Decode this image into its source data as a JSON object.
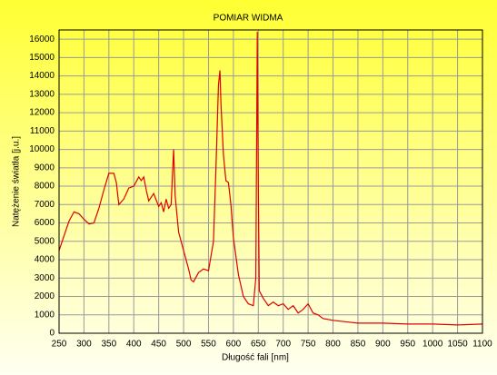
{
  "chart_data": {
    "type": "line",
    "title": "POMIAR WIDMA",
    "x_label": "Długość fali [nm]",
    "y_label": "Natężenie światła [j.u.]",
    "x": [
      250,
      260,
      270,
      280,
      290,
      300,
      310,
      320,
      330,
      340,
      350,
      360,
      365,
      370,
      380,
      390,
      400,
      410,
      415,
      420,
      425,
      430,
      440,
      450,
      455,
      460,
      465,
      470,
      475,
      480,
      483,
      490,
      500,
      510,
      515,
      520,
      530,
      540,
      550,
      560,
      565,
      570,
      573,
      575,
      580,
      585,
      590,
      595,
      600,
      610,
      620,
      630,
      640,
      645,
      648,
      650,
      652,
      660,
      670,
      680,
      690,
      700,
      710,
      720,
      730,
      740,
      750,
      760,
      770,
      780,
      800,
      850,
      900,
      950,
      1000,
      1050,
      1100
    ],
    "values": [
      4500,
      5300,
      6100,
      6600,
      6500,
      6200,
      5950,
      6000,
      6800,
      7800,
      8700,
      8700,
      8200,
      7000,
      7300,
      7900,
      8000,
      8500,
      8300,
      8500,
      7800,
      7200,
      7600,
      6900,
      7100,
      6600,
      7300,
      6800,
      7000,
      10000,
      7500,
      5500,
      4500,
      3500,
      2900,
      2800,
      3300,
      3500,
      3400,
      5000,
      9000,
      13500,
      14300,
      12500,
      9700,
      8300,
      8200,
      7000,
      5200,
      3200,
      2000,
      1600,
      1500,
      3000,
      16400,
      8000,
      2300,
      1900,
      1500,
      1700,
      1500,
      1600,
      1300,
      1500,
      1100,
      1300,
      1600,
      1100,
      1000,
      800,
      700,
      550,
      550,
      500,
      500,
      450,
      500
    ],
    "color": "#e00000",
    "xlim": [
      250,
      1100
    ],
    "xticks": [
      250,
      300,
      350,
      400,
      450,
      500,
      550,
      600,
      650,
      700,
      750,
      800,
      850,
      900,
      950,
      1000,
      1050,
      1100
    ],
    "ylim": [
      0,
      16500
    ],
    "yticks": [
      0,
      1000,
      2000,
      3000,
      4000,
      5000,
      6000,
      7000,
      8000,
      9000,
      10000,
      11000,
      12000,
      13000,
      14000,
      15000,
      16000
    ],
    "grid": true
  }
}
